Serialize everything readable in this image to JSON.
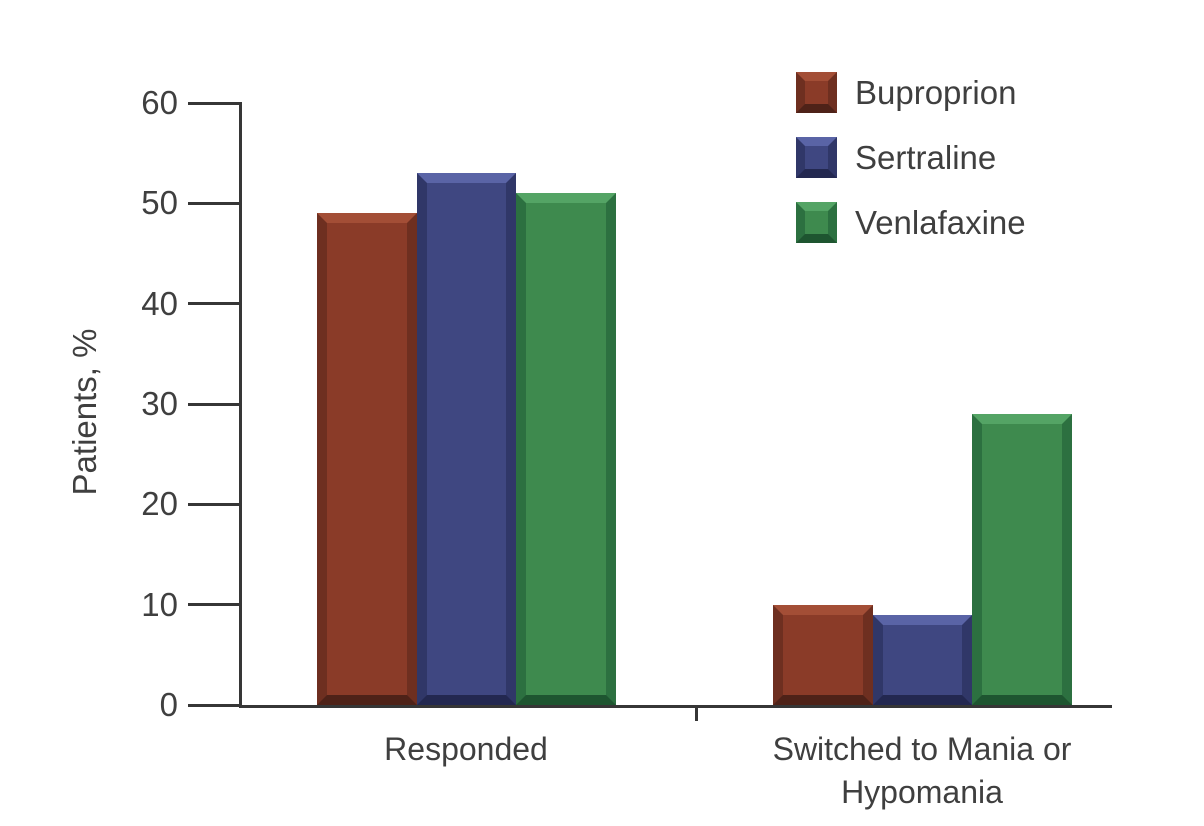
{
  "chart_data": {
    "type": "bar",
    "title": "",
    "xlabel": "",
    "ylabel": "Patients, %",
    "ylim": [
      0,
      60
    ],
    "yticks": [
      0,
      10,
      20,
      30,
      40,
      50,
      60
    ],
    "grid": false,
    "legend_position": "top-right",
    "categories": [
      "Responded",
      "Switched to Mania or\nHypomania"
    ],
    "series": [
      {
        "name": "Buproprion",
        "values": [
          49,
          10
        ],
        "color": "#8A3B28",
        "shade_top": "#A34E36",
        "shade_left": "#6E2F20",
        "shade_right": "#6E2F20",
        "shade_bottom": "#4E2218"
      },
      {
        "name": "Sertraline",
        "values": [
          53,
          9
        ],
        "color": "#3F4781",
        "shade_top": "#5A64A6",
        "shade_left": "#303768",
        "shade_right": "#303768",
        "shade_bottom": "#232850"
      },
      {
        "name": "Venlafaxine",
        "values": [
          51,
          29
        ],
        "color": "#3E8A4E",
        "shade_top": "#54A465",
        "shade_left": "#2C7040",
        "shade_right": "#2C7040",
        "shade_bottom": "#1E5530"
      }
    ],
    "axis_color": "#363636",
    "text_color": "#3F3F3F"
  }
}
